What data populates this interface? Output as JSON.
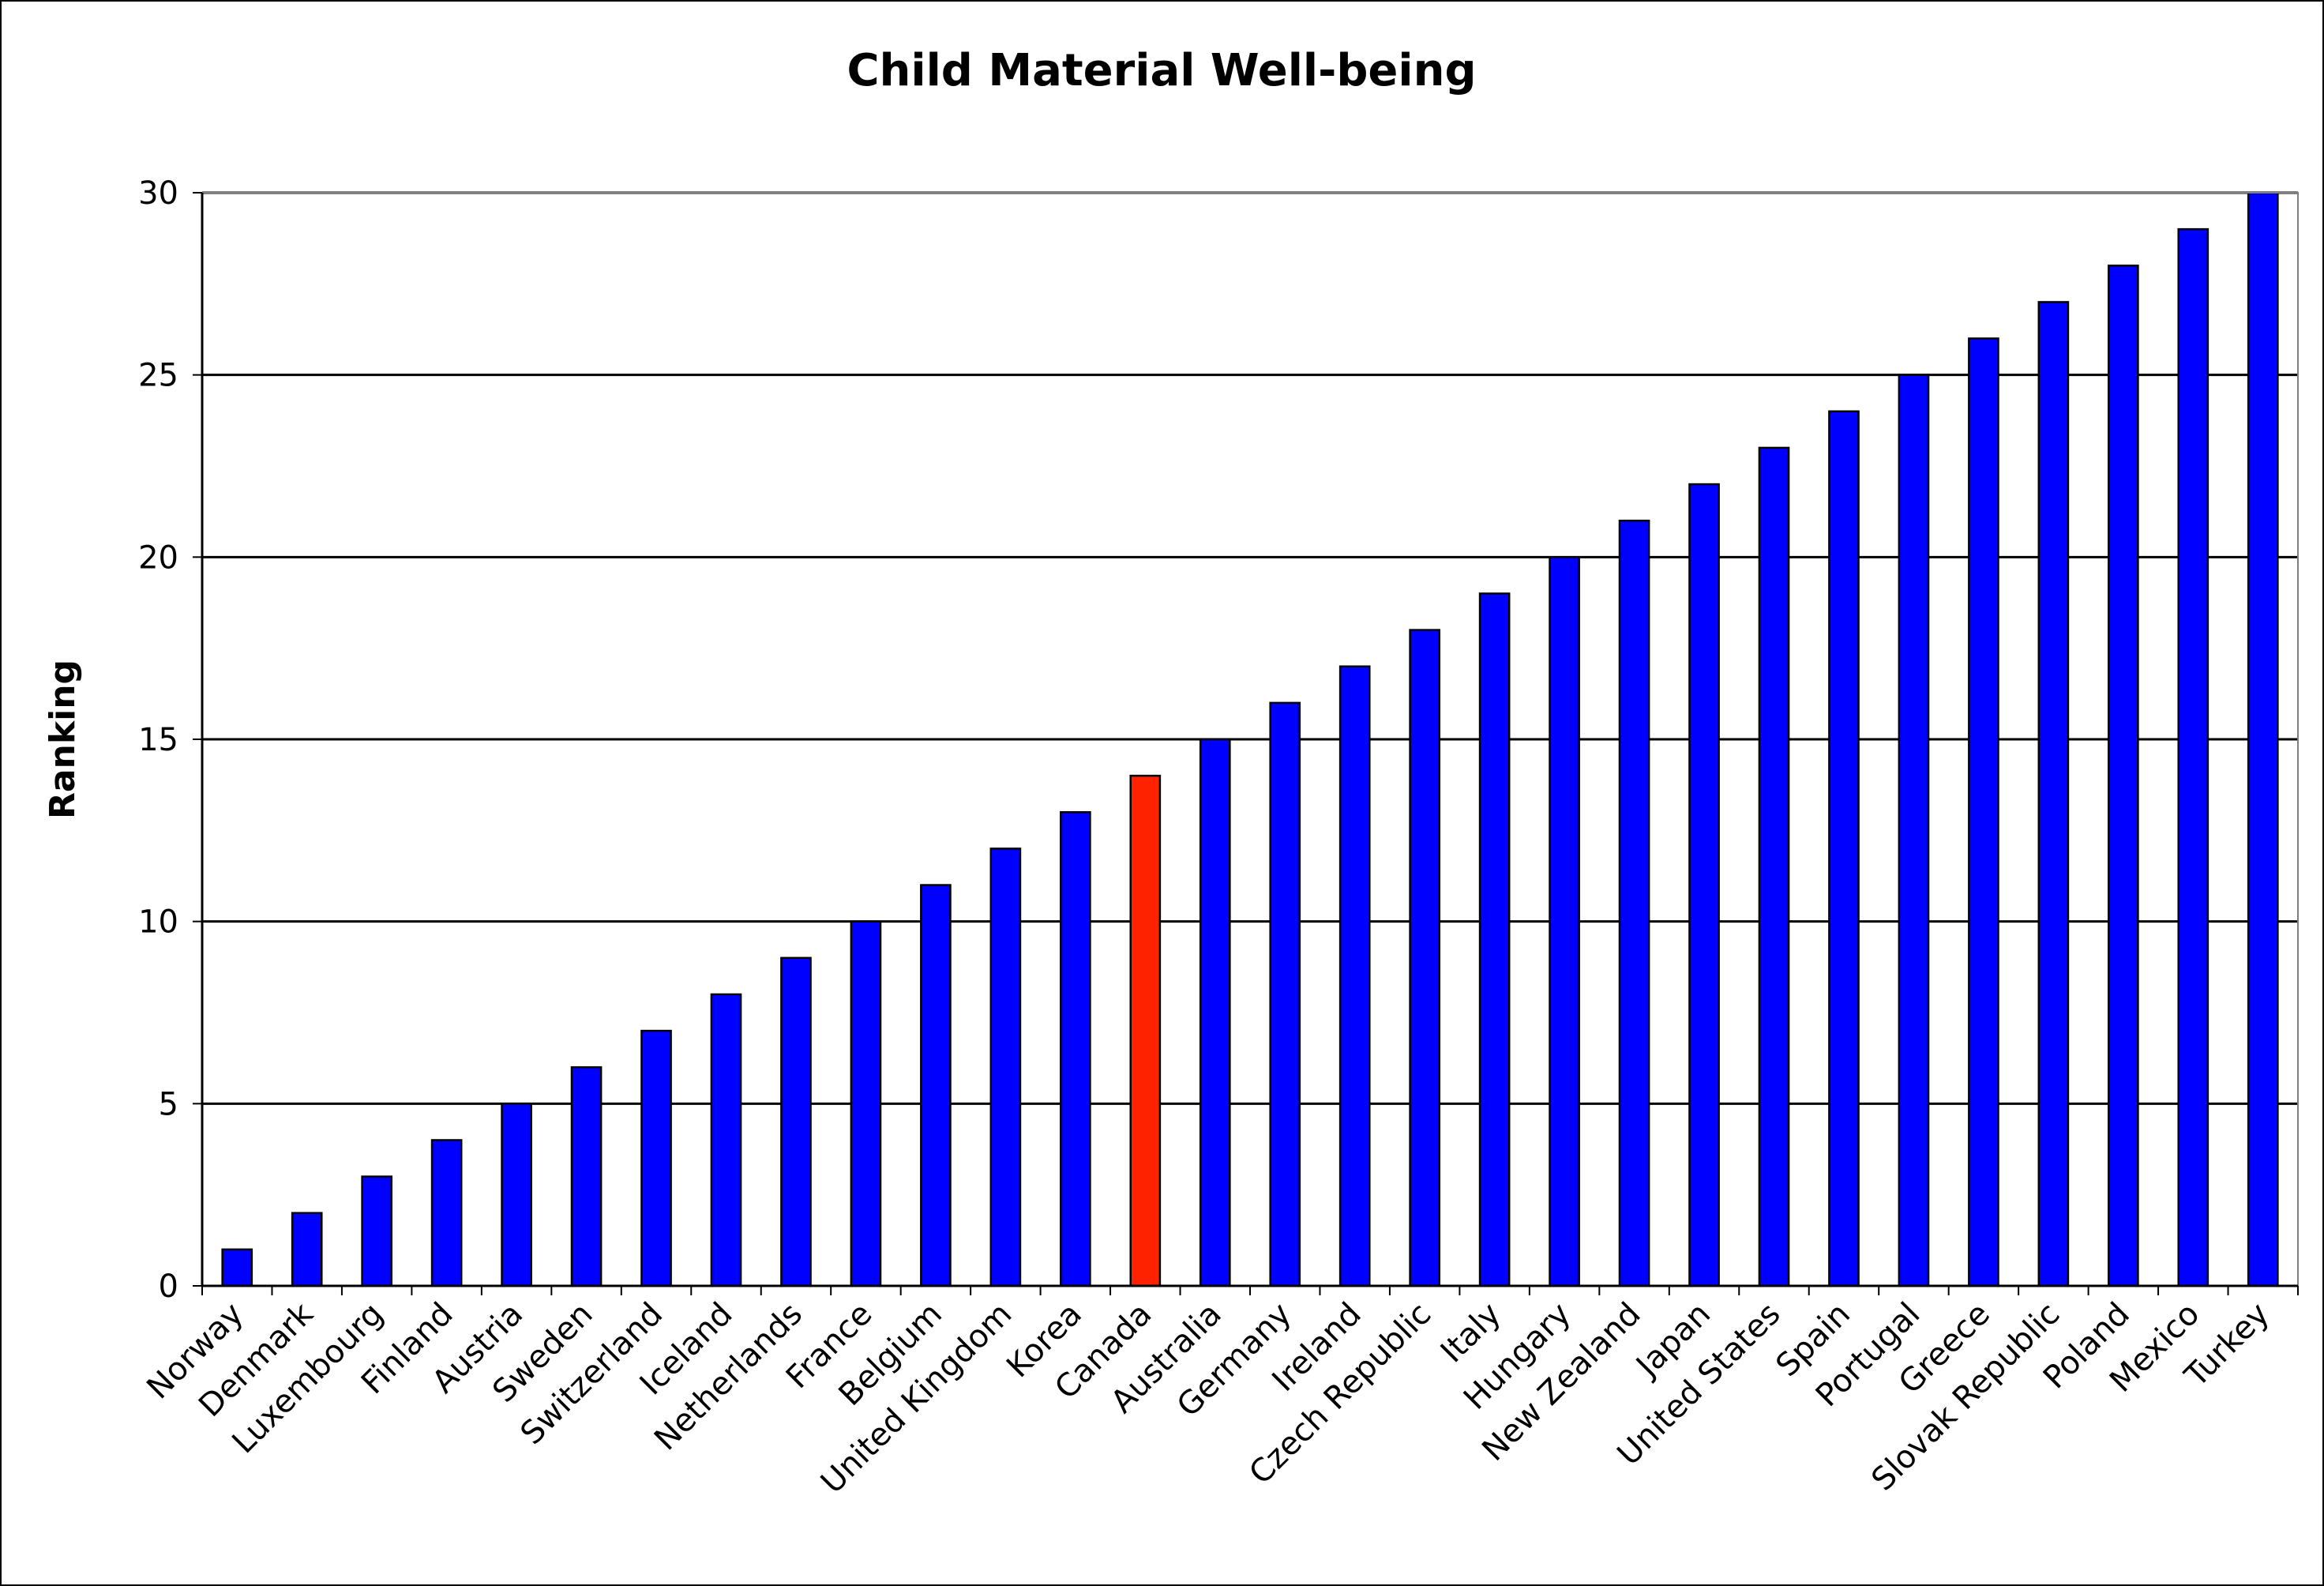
{
  "chart_data": {
    "type": "bar",
    "title": "Child Material Well-being",
    "xlabel": "",
    "ylabel": "Ranking",
    "ylim": [
      0,
      30
    ],
    "yticks": [
      0,
      5,
      10,
      15,
      20,
      25,
      30
    ],
    "grid": true,
    "legend": "none",
    "categories": [
      "Norway",
      "Denmark",
      "Luxembourg",
      "Finland",
      "Austria",
      "Sweden",
      "Switzerland",
      "Iceland",
      "Netherlands",
      "France",
      "Belgium",
      "United Kingdom",
      "Korea",
      "Canada",
      "Australia",
      "Germany",
      "Ireland",
      "Czech Republic",
      "Italy",
      "Hungary",
      "New Zealand",
      "Japan",
      "United States",
      "Spain",
      "Portugal",
      "Greece",
      "Slovak Republic",
      "Poland",
      "Mexico",
      "Turkey"
    ],
    "values": [
      1,
      2,
      3,
      4,
      5,
      6,
      7,
      8,
      9,
      10,
      11,
      12,
      13,
      14,
      15,
      16,
      17,
      18,
      19,
      20,
      21,
      22,
      23,
      24,
      25,
      26,
      27,
      28,
      29,
      30
    ],
    "bar_color": "#0000ff",
    "highlight": {
      "category": "Canada",
      "color": "#ff2200"
    }
  }
}
